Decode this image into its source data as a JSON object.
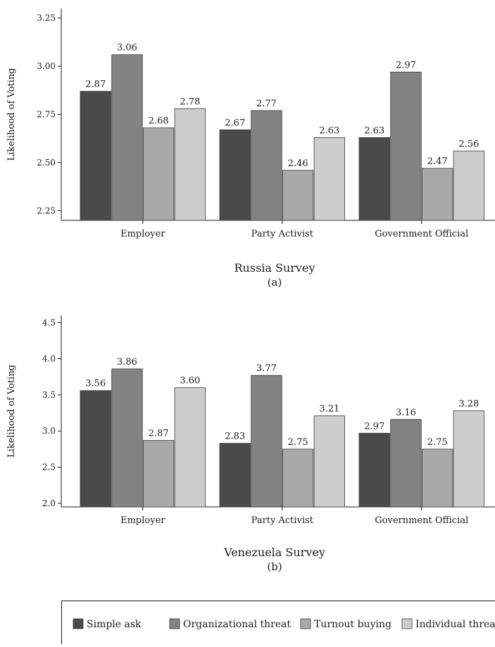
{
  "chart_data": [
    {
      "type": "bar",
      "title": "Russia Survey",
      "subtitle": "(a)",
      "xlabel": "",
      "ylabel": "Likelihood of Voting",
      "ylim": [
        2.2,
        3.3
      ],
      "yticks": [
        "2.25",
        "2.50",
        "2.75",
        "3.00",
        "3.25"
      ],
      "grid": false,
      "categories": [
        "Employer",
        "Party Activist",
        "Government Official"
      ],
      "series": [
        {
          "name": "Simple ask",
          "values": [
            2.87,
            2.67,
            2.63
          ],
          "labels": [
            "2.87",
            "2.67",
            "2.63"
          ],
          "color": "#4a4a4a"
        },
        {
          "name": "Organizational threat",
          "values": [
            3.06,
            2.77,
            2.97
          ],
          "labels": [
            "3.06",
            "2.77",
            "2.97"
          ],
          "color": "#838383"
        },
        {
          "name": "Turnout buying",
          "values": [
            2.68,
            2.46,
            2.47
          ],
          "labels": [
            "2.68",
            "2.46",
            "2.47"
          ],
          "color": "#a9a9a9"
        },
        {
          "name": "Individual threat",
          "values": [
            2.78,
            2.63,
            2.56
          ],
          "labels": [
            "2.78",
            "2.63",
            "2.56"
          ],
          "color": "#cdcdcd"
        }
      ]
    },
    {
      "type": "bar",
      "title": "Venezuela Survey",
      "subtitle": "(b)",
      "xlabel": "",
      "ylabel": "Likelihood of Voting",
      "ylim": [
        1.95,
        4.6
      ],
      "yticks": [
        "2.0",
        "2.5",
        "3.0",
        "3.5",
        "4.0",
        "4.5"
      ],
      "grid": false,
      "categories": [
        "Employer",
        "Party Activist",
        "Government Official"
      ],
      "series": [
        {
          "name": "Simple ask",
          "values": [
            3.56,
            2.83,
            2.97
          ],
          "labels": [
            "3.56",
            "2.83",
            "2.97"
          ],
          "color": "#4a4a4a"
        },
        {
          "name": "Organizational threat",
          "values": [
            3.86,
            3.77,
            3.16
          ],
          "labels": [
            "3.86",
            "3.77",
            "3.16"
          ],
          "color": "#838383"
        },
        {
          "name": "Turnout buying",
          "values": [
            2.87,
            2.75,
            2.75
          ],
          "labels": [
            "2.87",
            "2.75",
            "2.75"
          ],
          "color": "#a9a9a9"
        },
        {
          "name": "Individual threat",
          "values": [
            3.6,
            3.21,
            3.28
          ],
          "labels": [
            "3.60",
            "3.21",
            "3.28"
          ],
          "color": "#cdcdcd"
        }
      ]
    }
  ],
  "legend": {
    "placement": "bottom",
    "items": [
      {
        "label": "Simple ask",
        "color": "#4a4a4a"
      },
      {
        "label": "Organizational threat",
        "color": "#838383"
      },
      {
        "label": "Turnout buying",
        "color": "#a9a9a9"
      },
      {
        "label": "Individual threat",
        "color": "#cdcdcd"
      }
    ]
  }
}
